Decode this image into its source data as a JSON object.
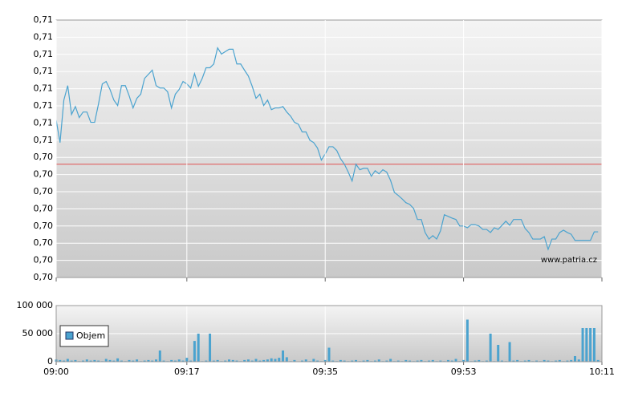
{
  "chart_data": [
    {
      "type": "line",
      "color": "#4ba3cf",
      "annotation": "www.patria.cz",
      "reference_line": 0.7043,
      "reference_color": "#e05050",
      "xlim": [
        540,
        611
      ],
      "ylim": [
        0.701,
        0.7085
      ],
      "grid": true,
      "yticks": [
        {
          "value": 0.701,
          "label": "0,70"
        },
        {
          "value": 0.7015,
          "label": "0,70"
        },
        {
          "value": 0.702,
          "label": "0,70"
        },
        {
          "value": 0.7025,
          "label": "0,70"
        },
        {
          "value": 0.703,
          "label": "0,70"
        },
        {
          "value": 0.7035,
          "label": "0,70"
        },
        {
          "value": 0.704,
          "label": "0,70"
        },
        {
          "value": 0.7045,
          "label": "0,70"
        },
        {
          "value": 0.705,
          "label": "0,71"
        },
        {
          "value": 0.7055,
          "label": "0,71"
        },
        {
          "value": 0.706,
          "label": "0,71"
        },
        {
          "value": 0.7065,
          "label": "0,71"
        },
        {
          "value": 0.707,
          "label": "0,71"
        },
        {
          "value": 0.7075,
          "label": "0,71"
        },
        {
          "value": 0.708,
          "label": "0,71"
        },
        {
          "value": 0.7085,
          "label": "0,71"
        }
      ],
      "x": [
        540,
        540.5,
        541,
        541.5,
        542,
        542.5,
        543,
        543.5,
        544,
        544.5,
        545,
        545.5,
        546,
        546.5,
        547,
        547.5,
        548,
        548.5,
        549,
        549.5,
        550,
        550.5,
        551,
        551.5,
        552,
        552.5,
        553,
        553.5,
        554,
        554.5,
        555,
        555.5,
        556,
        556.5,
        557,
        557.5,
        558,
        558.5,
        559,
        559.5,
        560,
        560.5,
        561,
        561.5,
        562,
        562.5,
        563,
        563.5,
        564,
        564.5,
        565,
        565.5,
        566,
        566.5,
        567,
        567.5,
        568,
        568.5,
        569,
        569.5,
        570,
        570.5,
        571,
        571.5,
        572,
        572.5,
        573,
        573.5,
        574,
        574.5,
        575,
        575.5,
        576,
        576.5,
        577,
        577.5,
        578,
        578.5,
        579,
        579.5,
        580,
        580.5,
        581,
        581.5,
        582,
        582.5,
        583,
        583.5,
        584,
        584.5,
        585,
        585.5,
        586,
        586.5,
        587,
        587.5,
        588,
        588.5,
        589,
        589.5,
        590,
        590.5,
        591,
        591.5,
        592,
        592.5,
        593,
        593.5,
        594,
        594.5,
        595,
        595.5,
        596,
        596.5,
        597,
        597.5,
        598,
        598.5,
        599,
        599.5,
        600,
        600.5,
        601,
        601.5,
        602,
        602.5,
        603,
        603.5,
        604,
        604.5,
        605,
        605.5,
        606,
        606.5,
        607,
        607.5,
        608,
        608.5,
        609,
        609.5,
        610,
        610.5
      ],
      "values": [
        0.70559,
        0.70493,
        0.70617,
        0.70659,
        0.70575,
        0.70598,
        0.70566,
        0.70582,
        0.70582,
        0.70552,
        0.70552,
        0.70605,
        0.70664,
        0.70671,
        0.70648,
        0.70617,
        0.70601,
        0.70659,
        0.70659,
        0.70629,
        0.70594,
        0.70622,
        0.70634,
        0.7068,
        0.70692,
        0.70704,
        0.70659,
        0.70652,
        0.70652,
        0.70641,
        0.70594,
        0.70634,
        0.70648,
        0.70671,
        0.70664,
        0.70652,
        0.70694,
        0.70657,
        0.7068,
        0.70711,
        0.70711,
        0.70722,
        0.70769,
        0.70751,
        0.70758,
        0.70765,
        0.70765,
        0.70722,
        0.70722,
        0.70704,
        0.70687,
        0.70657,
        0.70622,
        0.70634,
        0.70601,
        0.70617,
        0.70589,
        0.70594,
        0.70594,
        0.70598,
        0.70582,
        0.7057,
        0.70552,
        0.70547,
        0.70524,
        0.70524,
        0.705,
        0.70493,
        0.70477,
        0.70442,
        0.7046,
        0.70481,
        0.70481,
        0.7047,
        0.70446,
        0.7043,
        0.70407,
        0.70381,
        0.7043,
        0.70414,
        0.70418,
        0.70418,
        0.70395,
        0.70411,
        0.70402,
        0.70414,
        0.70407,
        0.70383,
        0.70348,
        0.70339,
        0.70329,
        0.70318,
        0.70313,
        0.70301,
        0.70269,
        0.70269,
        0.70231,
        0.70212,
        0.70222,
        0.70212,
        0.70236,
        0.70283,
        0.70278,
        0.70273,
        0.70269,
        0.7025,
        0.7025,
        0.70245,
        0.70254,
        0.70254,
        0.7025,
        0.7024,
        0.7024,
        0.70231,
        0.70245,
        0.7024,
        0.70252,
        0.70264,
        0.70252,
        0.70269,
        0.70269,
        0.70269,
        0.70243,
        0.70231,
        0.70212,
        0.70212,
        0.70212,
        0.70219,
        0.70182,
        0.70212,
        0.70212,
        0.70231,
        0.70238,
        0.70231,
        0.70226,
        0.70208,
        0.70208,
        0.70208,
        0.70208,
        0.70208,
        0.70233,
        0.70233
      ]
    },
    {
      "type": "bar",
      "xlim": [
        540,
        611
      ],
      "ylim": [
        0,
        100000
      ],
      "grid": true,
      "legend": "left",
      "yticks": [
        0,
        {
          "value": 50000,
          "label": "50 000"
        },
        {
          "value": 100000,
          "label": "100 000"
        }
      ],
      "xticks": [
        {
          "value": 540,
          "label": "09:00"
        },
        {
          "value": 557,
          "label": "09:17"
        },
        {
          "value": 575,
          "label": "09:35"
        },
        {
          "value": 593,
          "label": "09:53"
        },
        {
          "value": 611,
          "label": "10:11"
        }
      ],
      "series": [
        {
          "name": "Objem",
          "color": "#4ba3cf",
          "values": [
            4000,
            3000,
            2000,
            5000,
            2000,
            3000,
            1000,
            2000,
            4000,
            2000,
            3000,
            2000,
            1000,
            5000,
            3000,
            2000,
            6000,
            2000,
            1000,
            3000,
            2000,
            4000,
            1000,
            2000,
            3000,
            2000,
            4000,
            20000,
            2000,
            1000,
            3000,
            2000,
            4000,
            2000,
            7000,
            2000,
            37000,
            50000,
            1000,
            2000,
            50000,
            2000,
            3000,
            1000,
            2000,
            4000,
            3000,
            2000,
            1000,
            3000,
            4000,
            2000,
            5000,
            2000,
            3000,
            4000,
            6000,
            5000,
            7000,
            20000,
            8000,
            1000,
            3000,
            0,
            2000,
            4000,
            1000,
            5000,
            2000,
            1000,
            3000,
            25000,
            2000,
            1000,
            3000,
            2000,
            1000,
            2000,
            3000,
            1000,
            2000,
            3000,
            1000,
            2000,
            4000,
            1000,
            2000,
            5000,
            1000,
            2000,
            1000,
            3000,
            2000,
            1000,
            2000,
            3000,
            1000,
            2000,
            3000,
            1000,
            2000,
            1000,
            3000,
            2000,
            5000,
            1000,
            3000,
            75000,
            1000,
            2000,
            3000,
            1000,
            2000,
            50000,
            1000,
            30000,
            2000,
            1000,
            35000,
            2000,
            3000,
            1000,
            2000,
            3000,
            1000,
            2000,
            1000,
            3000,
            2000,
            1000,
            2000,
            3000,
            1000,
            2000,
            3000,
            10000,
            4000,
            60000,
            60000,
            60000,
            60000,
            3000
          ]
        }
      ]
    }
  ]
}
